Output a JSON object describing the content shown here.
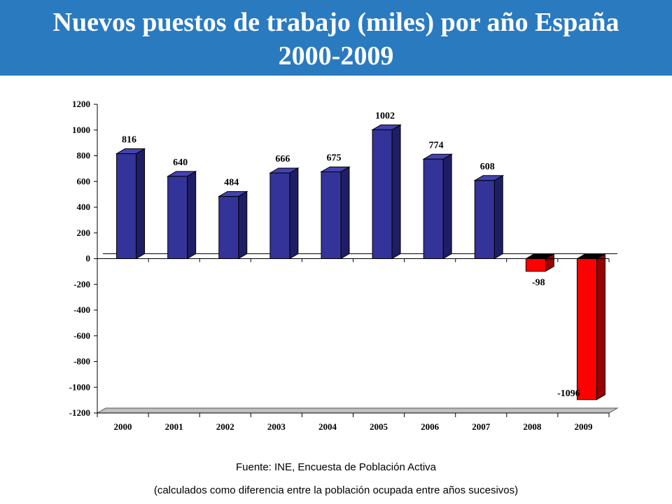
{
  "header": {
    "title_line1": "Nuevos puestos de trabajo (miles) por año España",
    "title_line2": "2000-2009"
  },
  "colors": {
    "header_bg": "#2a7ac0",
    "positive_front": "#333399",
    "positive_side": "#1e1e66",
    "positive_top": "#4343b0",
    "negative_front": "#ff0000",
    "negative_side": "#990000",
    "negative_top": "#000000"
  },
  "chart_data": {
    "type": "bar",
    "style": "3d-column",
    "categories": [
      "2000",
      "2001",
      "2002",
      "2003",
      "2004",
      "2005",
      "2006",
      "2007",
      "2008",
      "2009"
    ],
    "values": [
      816,
      640,
      484,
      666,
      675,
      1002,
      774,
      608,
      -98,
      -1096
    ],
    "data_labels": [
      "816",
      "640",
      "484",
      "666",
      "675",
      "1002",
      "774",
      "608",
      "-98",
      "-1096"
    ],
    "yticks": [
      1200,
      1000,
      800,
      600,
      400,
      200,
      0,
      -200,
      -400,
      -600,
      -800,
      -1000,
      -1200
    ],
    "ylim": [
      -1200,
      1200
    ],
    "xlabel": "",
    "ylabel": "",
    "grid": false,
    "legend": "none"
  },
  "footer": {
    "source": "Fuente: INE, Encuesta de Población Activa",
    "note": "(calculados como diferencia entre la población ocupada entre años sucesivos)"
  }
}
